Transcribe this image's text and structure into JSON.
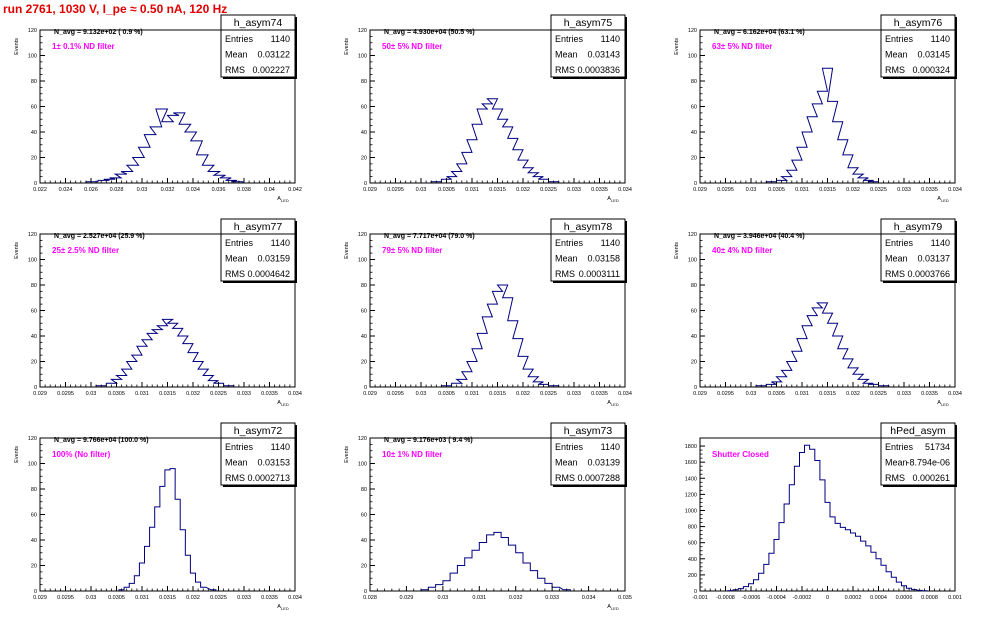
{
  "title": "run 2761,  1030 V, I_pe ≈ 0.50 nA, 120 Hz",
  "colors": {
    "hist": "#000080",
    "annotation": "#ff00ff",
    "title": "#e00000"
  },
  "chart_data": [
    {
      "type": "histogram",
      "name": "h_asym74",
      "navg": "N_avg = 9.132e+02 ( 0.9 %)",
      "filter": "1± 0.1% ND filter",
      "stats": {
        "entries": "1140",
        "mean": "0.03122",
        "rms": "0.002227"
      },
      "ylabel": "Events",
      "xlabel": "A_LED",
      "xlim": [
        0.02,
        0.042
      ],
      "ylim": [
        0,
        120
      ],
      "xticks": [
        "0.022",
        "0.024",
        "0.026",
        "0.028",
        "0.03",
        "0.032",
        "0.034",
        "0.036",
        "0.038",
        "0.04",
        "0.042"
      ],
      "yticks": [
        "0",
        "20",
        "40",
        "60",
        "80",
        "100",
        "120"
      ],
      "bins": [
        [
          0.0245,
          1
        ],
        [
          0.0255,
          2
        ],
        [
          0.026,
          3
        ],
        [
          0.0265,
          4
        ],
        [
          0.027,
          7
        ],
        [
          0.0275,
          9
        ],
        [
          0.028,
          14
        ],
        [
          0.0285,
          20
        ],
        [
          0.029,
          28
        ],
        [
          0.0295,
          38
        ],
        [
          0.03,
          44
        ],
        [
          0.0305,
          58
        ],
        [
          0.031,
          48
        ],
        [
          0.0315,
          53
        ],
        [
          0.032,
          55
        ],
        [
          0.0325,
          46
        ],
        [
          0.033,
          40
        ],
        [
          0.0335,
          33
        ],
        [
          0.034,
          22
        ],
        [
          0.0345,
          14
        ],
        [
          0.035,
          9
        ],
        [
          0.0355,
          6
        ],
        [
          0.036,
          4
        ],
        [
          0.0365,
          2
        ],
        [
          0.037,
          1
        ]
      ]
    },
    {
      "type": "histogram",
      "name": "h_asym75",
      "navg": "N_avg = 4.930e+04 (50.5 %)",
      "filter": "50± 5% ND filter",
      "stats": {
        "entries": "1140",
        "mean": "0.03143",
        "rms": "0.0003836"
      },
      "ylabel": "Events",
      "xlabel": "A_LED",
      "xlim": [
        0.029,
        0.034
      ],
      "ylim": [
        0,
        120
      ],
      "xticks": [
        "0.029",
        "0.0295",
        "0.03",
        "0.0305",
        "0.031",
        "0.0315",
        "0.032",
        "0.0325",
        "0.033",
        "0.0335",
        "0.034"
      ],
      "yticks": [
        "0",
        "20",
        "40",
        "60",
        "80",
        "100",
        "120"
      ],
      "bins": [
        [
          0.0303,
          1
        ],
        [
          0.0305,
          3
        ],
        [
          0.0306,
          5
        ],
        [
          0.0307,
          9
        ],
        [
          0.0308,
          15
        ],
        [
          0.0309,
          24
        ],
        [
          0.031,
          34
        ],
        [
          0.0311,
          46
        ],
        [
          0.0312,
          58
        ],
        [
          0.0313,
          62
        ],
        [
          0.0314,
          66
        ],
        [
          0.0315,
          58
        ],
        [
          0.0316,
          50
        ],
        [
          0.0317,
          44
        ],
        [
          0.0318,
          35
        ],
        [
          0.0319,
          26
        ],
        [
          0.032,
          18
        ],
        [
          0.0321,
          12
        ],
        [
          0.0322,
          8
        ],
        [
          0.0323,
          5
        ],
        [
          0.0324,
          3
        ],
        [
          0.0326,
          1
        ]
      ]
    },
    {
      "type": "histogram",
      "name": "h_asym76",
      "navg": "N_avg = 6.162e+04 (63.1 %)",
      "filter": "63± 5% ND filter",
      "stats": {
        "entries": "1140",
        "mean": "0.03145",
        "rms": "0.000324"
      },
      "ylabel": "Events",
      "xlabel": "A_LED",
      "xlim": [
        0.029,
        0.034
      ],
      "ylim": [
        0,
        120
      ],
      "xticks": [
        "0.029",
        "0.0295",
        "0.03",
        "0.0305",
        "0.031",
        "0.0315",
        "0.032",
        "0.0325",
        "0.033",
        "0.0335",
        "0.034"
      ],
      "yticks": [
        "0",
        "20",
        "40",
        "60",
        "80",
        "100",
        "120"
      ],
      "bins": [
        [
          0.0304,
          1
        ],
        [
          0.0306,
          2
        ],
        [
          0.0307,
          5
        ],
        [
          0.0308,
          10
        ],
        [
          0.0309,
          18
        ],
        [
          0.031,
          28
        ],
        [
          0.0311,
          40
        ],
        [
          0.0312,
          52
        ],
        [
          0.0313,
          62
        ],
        [
          0.0314,
          72
        ],
        [
          0.0315,
          90
        ],
        [
          0.0316,
          64
        ],
        [
          0.0317,
          48
        ],
        [
          0.0318,
          34
        ],
        [
          0.0319,
          22
        ],
        [
          0.032,
          12
        ],
        [
          0.0321,
          7
        ],
        [
          0.0322,
          4
        ],
        [
          0.0323,
          2
        ],
        [
          0.0324,
          1
        ]
      ]
    },
    {
      "type": "histogram",
      "name": "h_asym77",
      "navg": "N_avg = 2.527e+04 (25.9 %)",
      "filter": "25± 2.5% ND filter",
      "stats": {
        "entries": "1140",
        "mean": "0.03159",
        "rms": "0.0004642"
      },
      "ylabel": "Events",
      "xlabel": "A_LED",
      "xlim": [
        0.029,
        0.034
      ],
      "ylim": [
        0,
        120
      ],
      "xticks": [
        "0.029",
        "0.0295",
        "0.03",
        "0.0305",
        "0.031",
        "0.0315",
        "0.032",
        "0.0325",
        "0.033",
        "0.0335",
        "0.034"
      ],
      "yticks": [
        "0",
        "20",
        "40",
        "60",
        "80",
        "100",
        "120"
      ],
      "bins": [
        [
          0.0302,
          1
        ],
        [
          0.0304,
          3
        ],
        [
          0.0305,
          6
        ],
        [
          0.0306,
          9
        ],
        [
          0.0307,
          14
        ],
        [
          0.0308,
          20
        ],
        [
          0.0309,
          25
        ],
        [
          0.031,
          32
        ],
        [
          0.0311,
          37
        ],
        [
          0.0312,
          42
        ],
        [
          0.0313,
          45
        ],
        [
          0.0314,
          48
        ],
        [
          0.0315,
          53
        ],
        [
          0.0316,
          50
        ],
        [
          0.0317,
          46
        ],
        [
          0.0318,
          40
        ],
        [
          0.0319,
          34
        ],
        [
          0.032,
          27
        ],
        [
          0.0321,
          20
        ],
        [
          0.0322,
          14
        ],
        [
          0.0323,
          9
        ],
        [
          0.0324,
          5
        ],
        [
          0.0325,
          3
        ],
        [
          0.0327,
          1
        ]
      ]
    },
    {
      "type": "histogram",
      "name": "h_asym78",
      "navg": "N_avg = 7.717e+04 (79.0 %)",
      "filter": "79± 5% ND filter",
      "stats": {
        "entries": "1140",
        "mean": "0.03158",
        "rms": "0.0003111"
      },
      "ylabel": "Events",
      "xlabel": "A_LED",
      "xlim": [
        0.029,
        0.034
      ],
      "ylim": [
        0,
        120
      ],
      "xticks": [
        "0.029",
        "0.0295",
        "0.03",
        "0.0305",
        "0.031",
        "0.0315",
        "0.032",
        "0.0325",
        "0.033",
        "0.0335",
        "0.034"
      ],
      "yticks": [
        "0",
        "20",
        "40",
        "60",
        "80",
        "100",
        "120"
      ],
      "bins": [
        [
          0.0305,
          1
        ],
        [
          0.0307,
          3
        ],
        [
          0.0308,
          6
        ],
        [
          0.0309,
          12
        ],
        [
          0.031,
          20
        ],
        [
          0.0311,
          30
        ],
        [
          0.0312,
          42
        ],
        [
          0.0313,
          55
        ],
        [
          0.0314,
          65
        ],
        [
          0.0315,
          75
        ],
        [
          0.0316,
          80
        ],
        [
          0.0317,
          70
        ],
        [
          0.0318,
          52
        ],
        [
          0.0319,
          38
        ],
        [
          0.032,
          24
        ],
        [
          0.0321,
          14
        ],
        [
          0.0322,
          8
        ],
        [
          0.0323,
          4
        ],
        [
          0.0324,
          2
        ],
        [
          0.0326,
          1
        ]
      ]
    },
    {
      "type": "histogram",
      "name": "h_asym79",
      "navg": "N_avg = 3.946e+04 (40.4 %)",
      "filter": "40± 4% ND filter",
      "stats": {
        "entries": "1140",
        "mean": "0.03137",
        "rms": "0.0003766"
      },
      "ylabel": "Events",
      "xlabel": "A_LED",
      "xlim": [
        0.029,
        0.034
      ],
      "ylim": [
        0,
        120
      ],
      "xticks": [
        "0.029",
        "0.0295",
        "0.03",
        "0.0305",
        "0.031",
        "0.0315",
        "0.032",
        "0.0325",
        "0.033",
        "0.0335",
        "0.034"
      ],
      "yticks": [
        "0",
        "20",
        "40",
        "60",
        "80",
        "100",
        "120"
      ],
      "bins": [
        [
          0.0302,
          1
        ],
        [
          0.0304,
          2
        ],
        [
          0.0305,
          4
        ],
        [
          0.0306,
          8
        ],
        [
          0.0307,
          13
        ],
        [
          0.0308,
          20
        ],
        [
          0.0309,
          28
        ],
        [
          0.031,
          38
        ],
        [
          0.0311,
          48
        ],
        [
          0.0312,
          56
        ],
        [
          0.0313,
          62
        ],
        [
          0.0314,
          66
        ],
        [
          0.0315,
          58
        ],
        [
          0.0316,
          50
        ],
        [
          0.0317,
          40
        ],
        [
          0.0318,
          30
        ],
        [
          0.0319,
          22
        ],
        [
          0.032,
          15
        ],
        [
          0.0321,
          10
        ],
        [
          0.0322,
          6
        ],
        [
          0.0323,
          3
        ],
        [
          0.0324,
          2
        ],
        [
          0.0326,
          1
        ]
      ]
    },
    {
      "type": "histogram",
      "name": "h_asym72",
      "navg": "N_avg = 9.766e+04 (100.0 %)",
      "filter": "100% (No filter)",
      "stats": {
        "entries": "1140",
        "mean": "0.03153",
        "rms": "0.0002713"
      },
      "ylabel": "Events",
      "xlabel": "A_LED",
      "xlim": [
        0.029,
        0.034
      ],
      "ylim": [
        0,
        120
      ],
      "xticks": [
        "0.029",
        "0.0295",
        "0.03",
        "0.0305",
        "0.031",
        "0.0315",
        "0.032",
        "0.0325",
        "0.033",
        "0.0335",
        "0.034"
      ],
      "yticks": [
        "0",
        "20",
        "40",
        "60",
        "80",
        "100",
        "120"
      ],
      "bins": [
        [
          0.0306,
          1
        ],
        [
          0.0307,
          3
        ],
        [
          0.0308,
          6
        ],
        [
          0.0309,
          12
        ],
        [
          0.031,
          22
        ],
        [
          0.0311,
          35
        ],
        [
          0.0312,
          50
        ],
        [
          0.0313,
          66
        ],
        [
          0.0314,
          82
        ],
        [
          0.0315,
          95
        ],
        [
          0.0316,
          96
        ],
        [
          0.0317,
          72
        ],
        [
          0.0318,
          48
        ],
        [
          0.0319,
          28
        ],
        [
          0.032,
          14
        ],
        [
          0.0321,
          7
        ],
        [
          0.0322,
          3
        ],
        [
          0.0324,
          1
        ]
      ]
    },
    {
      "type": "histogram",
      "name": "h_asym73",
      "navg": "N_avg = 9.176e+03 ( 9.4 %)",
      "filter": "10± 1% ND filter",
      "stats": {
        "entries": "1140",
        "mean": "0.03139",
        "rms": "0.0007288"
      },
      "ylabel": "Events",
      "xlabel": "A_LED",
      "xlim": [
        0.028,
        0.035
      ],
      "ylim": [
        0,
        120
      ],
      "xticks": [
        "0.028",
        "0.029",
        "0.03",
        "0.031",
        "0.032",
        "0.033",
        "0.034",
        "0.035"
      ],
      "yticks": [
        "0",
        "20",
        "40",
        "60",
        "80",
        "100",
        "120"
      ],
      "bins": [
        [
          0.0295,
          1
        ],
        [
          0.0297,
          3
        ],
        [
          0.0299,
          5
        ],
        [
          0.0301,
          8
        ],
        [
          0.0303,
          14
        ],
        [
          0.0305,
          20
        ],
        [
          0.0307,
          26
        ],
        [
          0.0309,
          32
        ],
        [
          0.0311,
          38
        ],
        [
          0.0313,
          44
        ],
        [
          0.0315,
          46
        ],
        [
          0.0317,
          42
        ],
        [
          0.0319,
          36
        ],
        [
          0.0321,
          30
        ],
        [
          0.0323,
          22
        ],
        [
          0.0325,
          16
        ],
        [
          0.0327,
          10
        ],
        [
          0.0329,
          6
        ],
        [
          0.0331,
          3
        ],
        [
          0.0334,
          1
        ]
      ]
    },
    {
      "type": "histogram",
      "name": "hPed_asym",
      "navg": "",
      "filter": "Shutter Closed",
      "stats": {
        "entries": "51734",
        "mean": "-8.794e-06",
        "rms": "0.000261"
      },
      "ylabel": "",
      "xlabel": "",
      "xlim": [
        -0.001,
        0.001
      ],
      "ylim": [
        0,
        1900
      ],
      "xticks": [
        "-0.001",
        "-0.0008",
        "-0.0006",
        "-0.0004",
        "-0.0002",
        "0",
        "0.0002",
        "0.0004",
        "0.0006",
        "0.0008",
        "0.001"
      ],
      "yticks": [
        "0",
        "200",
        "400",
        "600",
        "800",
        "1000",
        "1200",
        "1400",
        "1600",
        "1800"
      ],
      "bins": [
        [
          -0.00076,
          5
        ],
        [
          -0.00072,
          15
        ],
        [
          -0.00068,
          30
        ],
        [
          -0.00064,
          55
        ],
        [
          -0.0006,
          90
        ],
        [
          -0.00056,
          140
        ],
        [
          -0.00052,
          220
        ],
        [
          -0.00048,
          330
        ],
        [
          -0.00044,
          470
        ],
        [
          -0.0004,
          640
        ],
        [
          -0.00036,
          850
        ],
        [
          -0.00032,
          1080
        ],
        [
          -0.00028,
          1320
        ],
        [
          -0.00024,
          1550
        ],
        [
          -0.0002,
          1720
        ],
        [
          -0.00016,
          1810
        ],
        [
          -0.00012,
          1760
        ],
        [
          -8e-05,
          1620
        ],
        [
          -4e-05,
          1380
        ],
        [
          0.0,
          1100
        ],
        [
          4e-05,
          920
        ],
        [
          8e-05,
          840
        ],
        [
          0.00012,
          790
        ],
        [
          0.00016,
          760
        ],
        [
          0.0002,
          720
        ],
        [
          0.00024,
          680
        ],
        [
          0.00028,
          620
        ],
        [
          0.00032,
          560
        ],
        [
          0.00036,
          480
        ],
        [
          0.0004,
          400
        ],
        [
          0.00044,
          320
        ],
        [
          0.00048,
          240
        ],
        [
          0.00052,
          170
        ],
        [
          0.00056,
          110
        ],
        [
          0.0006,
          65
        ],
        [
          0.00064,
          35
        ],
        [
          0.00068,
          18
        ],
        [
          0.00072,
          8
        ],
        [
          0.00076,
          3
        ]
      ]
    }
  ]
}
